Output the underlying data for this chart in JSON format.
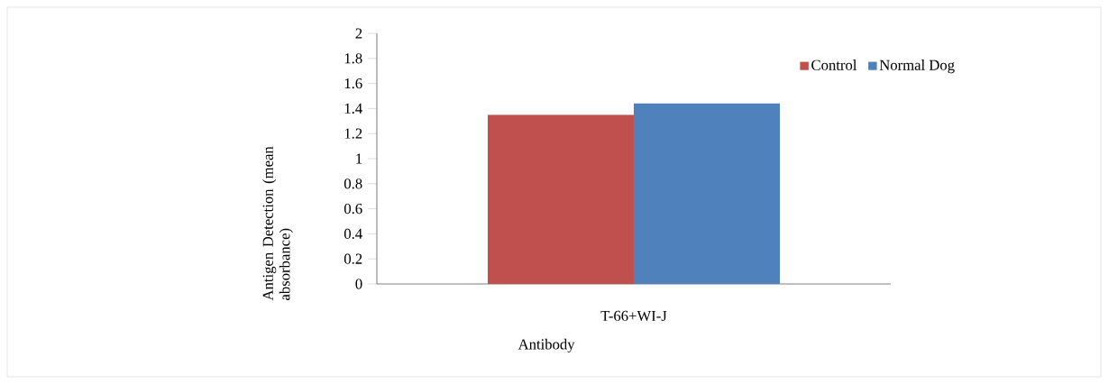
{
  "chart_data": {
    "type": "bar",
    "ylabel": "Antigen Detection (mean absorbance)",
    "xlabel": "Antibody",
    "categories": [
      "T-66+WI-J"
    ],
    "series": [
      {
        "name": "Control",
        "color": "#c0504d",
        "values": [
          1.35
        ]
      },
      {
        "name": "Normal Dog",
        "color": "#4f81bd",
        "values": [
          1.44
        ]
      }
    ],
    "ylim": [
      0,
      2
    ],
    "yticks": [
      0,
      0.2,
      0.4,
      0.6,
      0.8,
      1,
      1.2,
      1.4,
      1.6,
      1.8,
      2
    ],
    "grid": false,
    "legend": "top right"
  }
}
